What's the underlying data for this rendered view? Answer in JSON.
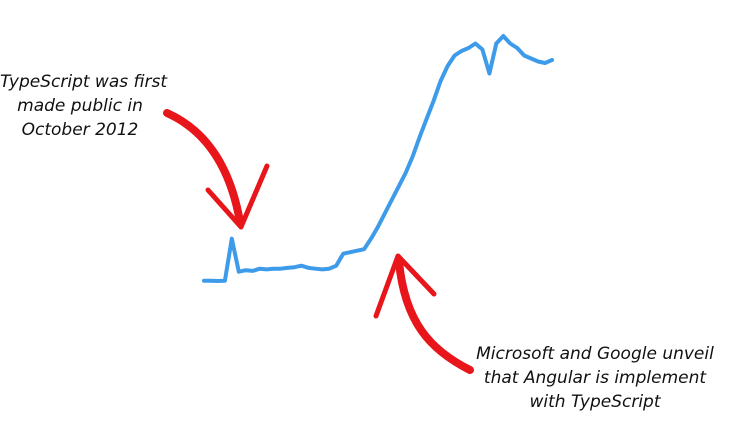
{
  "chart_data": {
    "type": "line",
    "title": "",
    "xlabel": "",
    "ylabel": "",
    "grid": false,
    "legend": "none",
    "series_color": "#3d9be9",
    "arrow_color": "#e8151b",
    "x": [
      0,
      2,
      4,
      6,
      8,
      10,
      12,
      14,
      16,
      18,
      20,
      22,
      24,
      26,
      28,
      30,
      32,
      34,
      36,
      38,
      40,
      42,
      44,
      46,
      48,
      50,
      52,
      54,
      56,
      58,
      60,
      62,
      64,
      66,
      68,
      70,
      72,
      74,
      76,
      78,
      80,
      82,
      84,
      86,
      88,
      90,
      92,
      94,
      96,
      98,
      100
    ],
    "values": [
      2,
      2,
      1.8,
      2,
      30,
      8,
      9,
      8.5,
      10,
      9.5,
      10,
      10,
      10.5,
      11,
      12,
      10.5,
      10,
      9.5,
      10,
      12,
      20,
      21,
      22,
      23,
      30,
      38,
      47,
      56,
      65,
      74,
      85,
      98,
      110,
      122,
      135,
      145,
      152,
      155,
      157,
      160,
      156,
      140,
      160,
      165,
      160,
      157,
      152,
      150,
      148,
      147,
      149
    ],
    "annotations": [
      {
        "id": "launch",
        "lines": [
          "TypeScript was first",
          "made public in",
          "October 2012"
        ],
        "x": 4
      },
      {
        "id": "angular",
        "lines": [
          "Microsoft and Google unveil",
          "that Angular is implement",
          "with TypeScript"
        ],
        "x": 40
      }
    ]
  }
}
